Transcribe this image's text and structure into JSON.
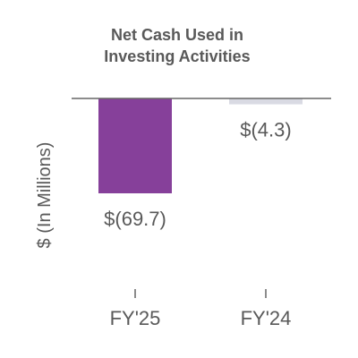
{
  "chart_data": {
    "type": "bar",
    "title": "Net Cash Used in Investing Activities",
    "title_lines": [
      "Net Cash Used in",
      "Investing Activities"
    ],
    "ylabel": "$ (In Millions)",
    "xlabel": "",
    "categories": [
      "FY'25",
      "FY'24"
    ],
    "values": [
      -69.7,
      -4.3
    ],
    "data_labels": [
      "$(69.7)",
      "$(4.3)"
    ],
    "ylim": [
      -100,
      0
    ],
    "grid": false,
    "legend": "none",
    "colors": [
      "#86409a",
      "#d9dae3"
    ],
    "axis_color": "#666666",
    "text_color": "#595959"
  }
}
